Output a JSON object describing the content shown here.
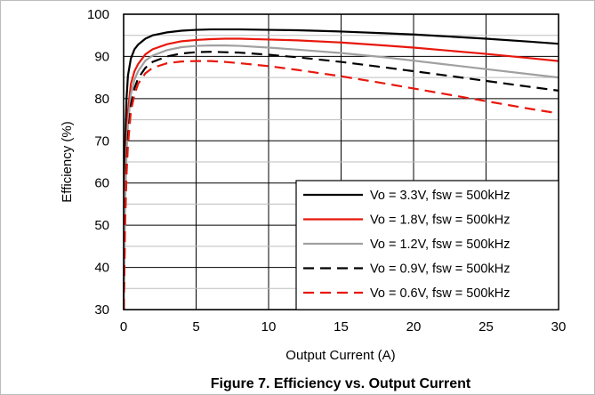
{
  "chart_data": {
    "type": "line",
    "title": "",
    "caption": "Figure 7. Efficiency vs. Output Current",
    "xlabel": "Output Current (A)",
    "ylabel": "Efficiency (%)",
    "xlim": [
      0,
      30
    ],
    "ylim": [
      30,
      100
    ],
    "xticks": [
      "0",
      "5",
      "10",
      "15",
      "20",
      "25",
      "30"
    ],
    "yticks": [
      "30",
      "40",
      "50",
      "60",
      "70",
      "80",
      "90",
      "100"
    ],
    "grid": true,
    "legend_position": "bottom-right",
    "series": [
      {
        "name": "Vo = 3.3V, fsw = 500kHz",
        "color": "#000000",
        "dash": "solid",
        "x": [
          0.01,
          0.1,
          0.2,
          0.3,
          0.5,
          0.75,
          1,
          1.5,
          2,
          3,
          4,
          5,
          6,
          7,
          8,
          10,
          12,
          15,
          18,
          20,
          22,
          25,
          28,
          30
        ],
        "y": [
          30,
          68,
          80,
          85.5,
          89.5,
          91.7,
          92.8,
          94.2,
          95.0,
          95.7,
          96.1,
          96.3,
          96.4,
          96.4,
          96.4,
          96.3,
          96.2,
          95.9,
          95.5,
          95.2,
          94.8,
          94.2,
          93.5,
          93.0
        ]
      },
      {
        "name": "Vo = 1.8V, fsw = 500kHz",
        "color": "#e8170c",
        "dash": "solid",
        "x": [
          0.01,
          0.1,
          0.2,
          0.3,
          0.5,
          0.75,
          1,
          1.5,
          2,
          3,
          4,
          5,
          6,
          7,
          8,
          10,
          12,
          15,
          18,
          20,
          22,
          25,
          28,
          30
        ],
        "y": [
          30,
          58,
          70,
          77,
          83.5,
          86.5,
          88.2,
          90.5,
          91.7,
          92.9,
          93.6,
          93.9,
          94.1,
          94.2,
          94.2,
          94.0,
          93.8,
          93.3,
          92.6,
          92.1,
          91.5,
          90.6,
          89.6,
          88.9
        ]
      },
      {
        "name": "Vo = 1.2V, fsw = 500kHz",
        "color": "#a0a0a0",
        "dash": "solid",
        "x": [
          0.01,
          0.1,
          0.2,
          0.3,
          0.5,
          0.75,
          1,
          1.5,
          2,
          3,
          4,
          5,
          6,
          7,
          8,
          10,
          12,
          15,
          18,
          20,
          22,
          25,
          28,
          30
        ],
        "y": [
          30,
          55,
          67,
          74,
          81,
          84.5,
          86.5,
          89.0,
          90.2,
          91.5,
          92.2,
          92.5,
          92.6,
          92.6,
          92.5,
          92.1,
          91.6,
          90.8,
          89.8,
          89.0,
          88.2,
          87.0,
          85.8,
          85.0
        ]
      },
      {
        "name": "Vo = 0.9V, fsw = 500kHz",
        "color": "#000000",
        "dash": "dashed",
        "x": [
          0.01,
          0.1,
          0.2,
          0.3,
          0.5,
          0.75,
          1,
          1.5,
          2,
          3,
          4,
          5,
          6,
          7,
          8,
          10,
          12,
          15,
          18,
          20,
          22,
          25,
          28,
          30
        ],
        "y": [
          30,
          52,
          64,
          71,
          78.5,
          82.5,
          84.8,
          87.3,
          88.7,
          90.0,
          90.7,
          91.0,
          91.1,
          91.0,
          90.9,
          90.4,
          89.8,
          88.7,
          87.4,
          86.5,
          85.6,
          84.2,
          82.8,
          81.9
        ]
      },
      {
        "name": "Vo = 0.6V, fsw = 500kHz",
        "color": "#e8170c",
        "dash": "dashed",
        "x": [
          0.01,
          0.1,
          0.2,
          0.3,
          0.5,
          0.75,
          1,
          1.5,
          2,
          3,
          4,
          5,
          6,
          7,
          8,
          10,
          12,
          15,
          18,
          20,
          22,
          25,
          28,
          30
        ],
        "y": [
          30,
          50,
          62,
          69,
          77,
          81,
          83.5,
          86.0,
          87.3,
          88.4,
          88.8,
          88.9,
          88.9,
          88.7,
          88.4,
          87.7,
          86.8,
          85.3,
          83.6,
          82.4,
          81.2,
          79.4,
          77.6,
          76.5
        ]
      }
    ]
  }
}
